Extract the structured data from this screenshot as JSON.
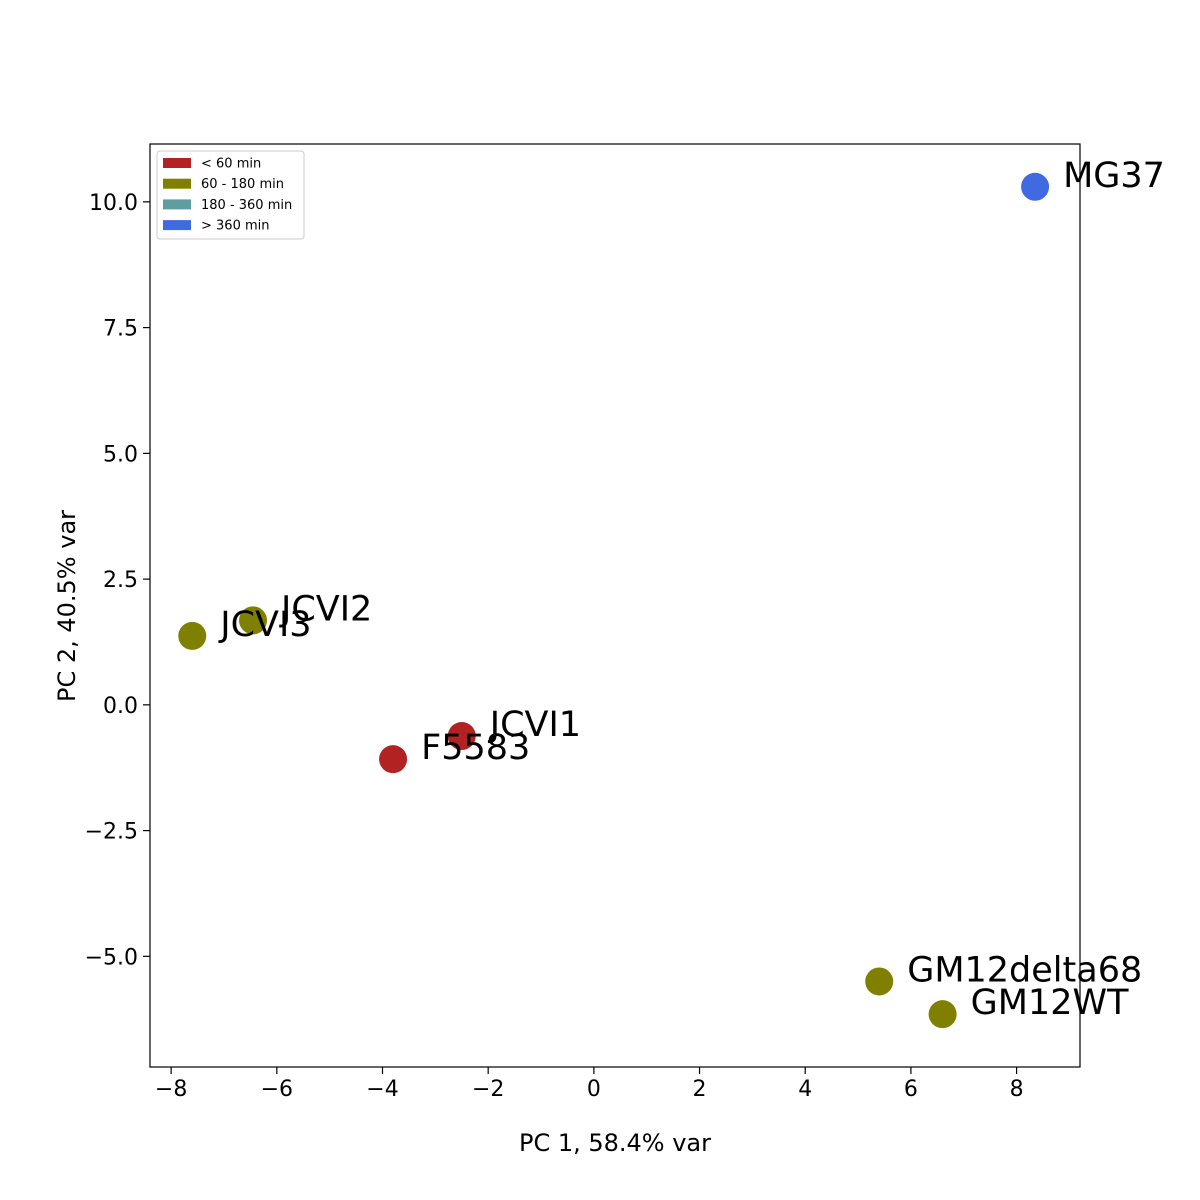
{
  "chart_data": {
    "type": "scatter",
    "title": "",
    "xlabel": "PC 1, 58.4% var",
    "ylabel": "PC 2, 40.5% var",
    "xlim": [
      -8.4,
      9.2
    ],
    "ylim": [
      -7.2,
      11.15
    ],
    "xticks": [
      -8,
      -6,
      -4,
      -2,
      0,
      2,
      4,
      6,
      8
    ],
    "xtick_labels": [
      "−8",
      "−6",
      "−4",
      "−2",
      "0",
      "2",
      "4",
      "6",
      "8"
    ],
    "yticks": [
      -5.0,
      -2.5,
      0.0,
      2.5,
      5.0,
      7.5,
      10.0
    ],
    "ytick_labels": [
      "−5.0",
      "−2.5",
      "0.0",
      "2.5",
      "5.0",
      "7.5",
      "10.0"
    ],
    "grid": false,
    "legend_position": "top-left",
    "legend": [
      {
        "label": "< 60 min",
        "color": "#b22222"
      },
      {
        "label": "60 - 180 min",
        "color": "#808000"
      },
      {
        "label": "180 - 360 min",
        "color": "#5f9ea0"
      },
      {
        "label": "> 360 min",
        "color": "#4169e1"
      }
    ],
    "points": [
      {
        "label": "MG37",
        "x": 8.35,
        "y": 10.3,
        "color": "#4169e1"
      },
      {
        "label": "JCVI2",
        "x": -6.45,
        "y": 1.68,
        "color": "#808000"
      },
      {
        "label": "JCVI3",
        "x": -7.6,
        "y": 1.37,
        "color": "#808000"
      },
      {
        "label": "JCVI1",
        "x": -2.5,
        "y": -0.62,
        "color": "#b22222"
      },
      {
        "label": "F5583",
        "x": -3.8,
        "y": -1.08,
        "color": "#b22222"
      },
      {
        "label": "GM12delta68",
        "x": 5.4,
        "y": -5.5,
        "color": "#808000"
      },
      {
        "label": "GM12WT",
        "x": 6.6,
        "y": -6.15,
        "color": "#808000"
      }
    ]
  }
}
